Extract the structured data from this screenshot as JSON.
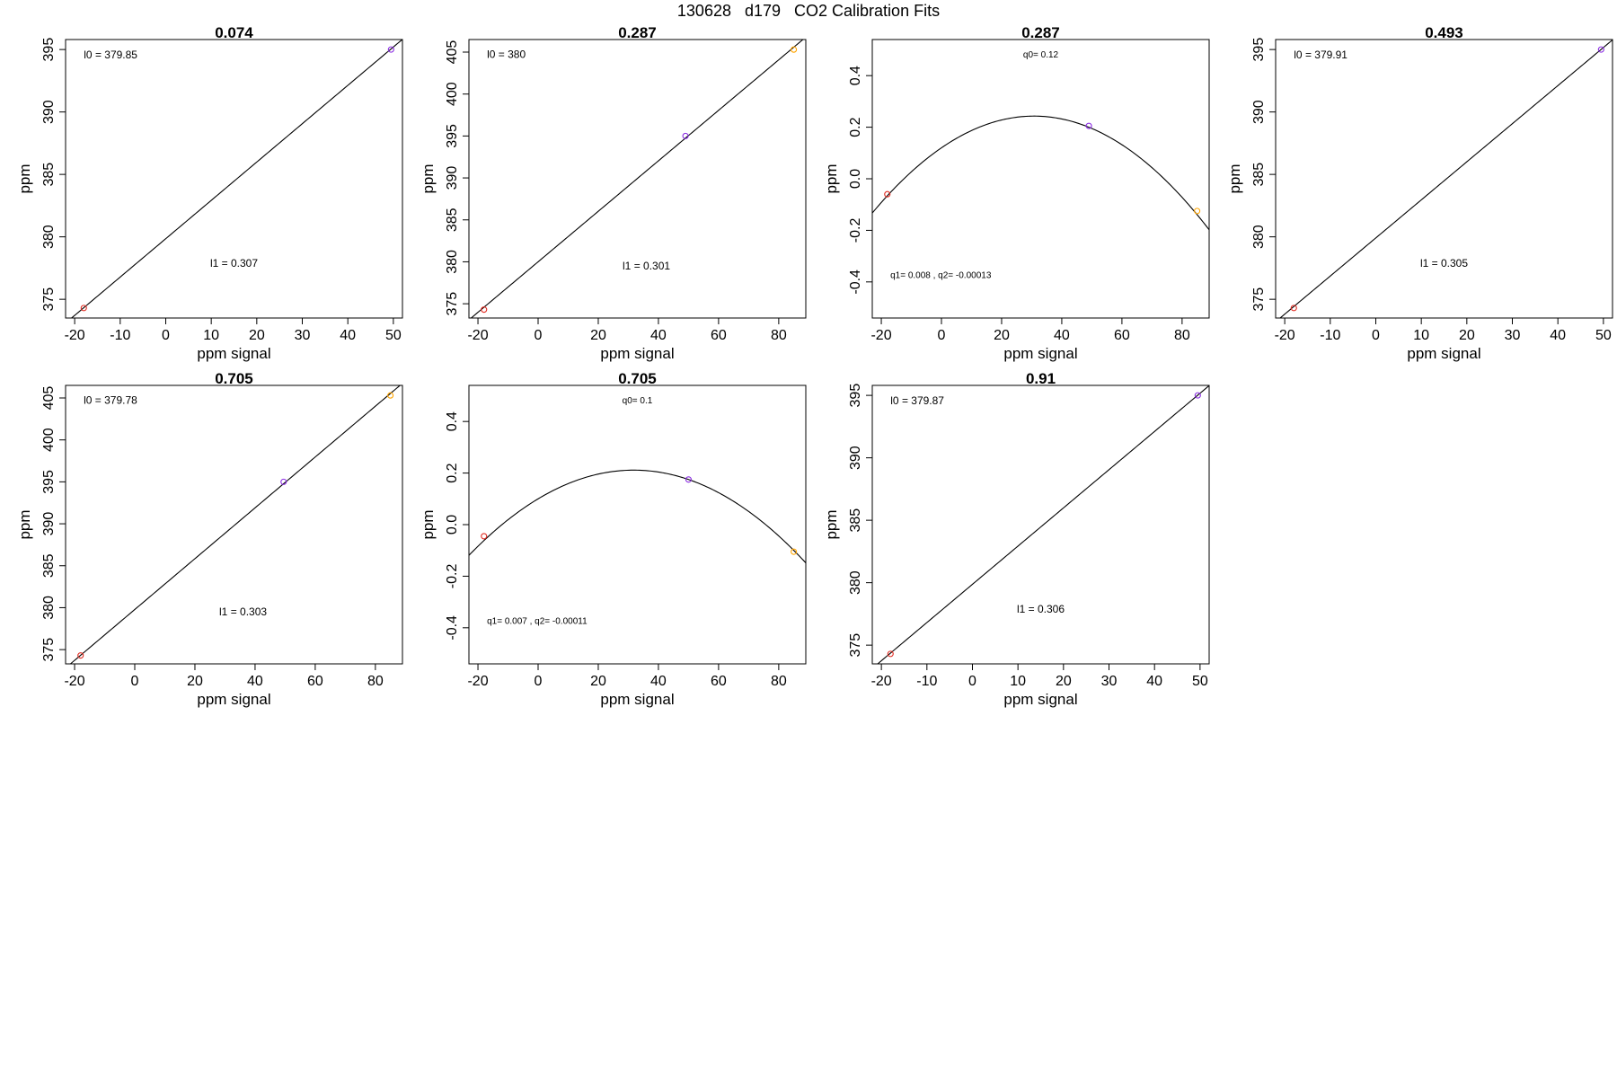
{
  "page": {
    "title": "130628   d179   CO2 Calibration Fits"
  },
  "colors": {
    "axis": "#000000",
    "fit_line": "#000000",
    "point_low": "#e0281e",
    "point_mid": "#8a2be2",
    "point_high": "#ffa500"
  },
  "chart_data": [
    {
      "type": "scatter",
      "fit": "linear",
      "title": "0.074",
      "xlabel": "ppm signal",
      "ylabel": "ppm",
      "xlim": [
        -22,
        52
      ],
      "ylim": [
        373.5,
        395.8
      ],
      "xticks": [
        -20,
        -10,
        0,
        10,
        20,
        30,
        40,
        50
      ],
      "yticks": [
        375,
        380,
        385,
        390,
        395
      ],
      "fit_params": {
        "intercept": 379.85,
        "slope": 0.307
      },
      "annotations": [
        {
          "id": "l0",
          "text": "l0 =  379.85",
          "x": -18,
          "y": 394.3,
          "size": "medium",
          "anchor": "start"
        },
        {
          "id": "l1",
          "text": "l1 =  0.307",
          "x": 15,
          "y": 377.6,
          "size": "medium",
          "anchor": "middle"
        }
      ],
      "points": [
        {
          "x": -18,
          "y": 374.3,
          "color": "#e0281e"
        },
        {
          "x": 49.5,
          "y": 395.0,
          "color": "#8a2be2"
        }
      ]
    },
    {
      "type": "scatter",
      "fit": "linear",
      "title": "0.287",
      "xlabel": "ppm signal",
      "ylabel": "ppm",
      "xlim": [
        -23,
        89
      ],
      "ylim": [
        373.3,
        406.5
      ],
      "xticks": [
        -20,
        0,
        20,
        40,
        60,
        80
      ],
      "yticks": [
        375,
        380,
        385,
        390,
        395,
        400,
        405
      ],
      "fit_params": {
        "intercept": 380,
        "slope": 0.301
      },
      "annotations": [
        {
          "id": "l0",
          "text": "l0 =  380",
          "x": -17,
          "y": 404.3,
          "size": "medium",
          "anchor": "start"
        },
        {
          "id": "l1",
          "text": "l1 =  0.301",
          "x": 36,
          "y": 379.1,
          "size": "medium",
          "anchor": "middle"
        }
      ],
      "points": [
        {
          "x": -18,
          "y": 374.3,
          "color": "#e0281e"
        },
        {
          "x": 49,
          "y": 395.0,
          "color": "#8a2be2"
        },
        {
          "x": 85,
          "y": 405.3,
          "color": "#ffa500"
        }
      ]
    },
    {
      "type": "scatter",
      "fit": "quadratic",
      "title": "0.287",
      "xlabel": "ppm signal",
      "ylabel": "ppm",
      "xlim": [
        -23,
        89
      ],
      "ylim": [
        -0.54,
        0.54
      ],
      "xticks": [
        -20,
        0,
        20,
        40,
        60,
        80
      ],
      "yticks": [
        -0.4,
        -0.2,
        0.0,
        0.2,
        0.4
      ],
      "fit_params": {
        "q0": 0.12,
        "q1": 0.008,
        "q2": -0.00013
      },
      "annotations": [
        {
          "id": "q0",
          "text": "q0= 0.12",
          "x": 33,
          "y": 0.47,
          "size": "small",
          "anchor": "middle"
        },
        {
          "id": "q12",
          "text": "q1= 0.008 , q2= -0.00013",
          "x": -17,
          "y": -0.385,
          "size": "small",
          "anchor": "start"
        }
      ],
      "points": [
        {
          "x": -18,
          "y": -0.06,
          "color": "#e0281e"
        },
        {
          "x": 49,
          "y": 0.205,
          "color": "#8a2be2"
        },
        {
          "x": 85,
          "y": -0.125,
          "color": "#ffa500"
        }
      ]
    },
    {
      "type": "scatter",
      "fit": "linear",
      "title": "0.493",
      "xlabel": "ppm signal",
      "ylabel": "ppm",
      "xlim": [
        -22,
        52
      ],
      "ylim": [
        373.5,
        395.8
      ],
      "xticks": [
        -20,
        -10,
        0,
        10,
        20,
        30,
        40,
        50
      ],
      "yticks": [
        375,
        380,
        385,
        390,
        395
      ],
      "fit_params": {
        "intercept": 379.91,
        "slope": 0.305
      },
      "annotations": [
        {
          "id": "l0",
          "text": "l0 =  379.91",
          "x": -18,
          "y": 394.3,
          "size": "medium",
          "anchor": "start"
        },
        {
          "id": "l1",
          "text": "l1 =  0.305",
          "x": 15,
          "y": 377.6,
          "size": "medium",
          "anchor": "middle"
        }
      ],
      "points": [
        {
          "x": -18,
          "y": 374.3,
          "color": "#e0281e"
        },
        {
          "x": 49.5,
          "y": 395.0,
          "color": "#8a2be2"
        }
      ]
    },
    {
      "type": "scatter",
      "fit": "linear",
      "title": "0.705",
      "xlabel": "ppm signal",
      "ylabel": "ppm",
      "xlim": [
        -23,
        89
      ],
      "ylim": [
        373.3,
        406.5
      ],
      "xticks": [
        -20,
        0,
        20,
        40,
        60,
        80
      ],
      "yticks": [
        375,
        380,
        385,
        390,
        395,
        400,
        405
      ],
      "fit_params": {
        "intercept": 379.78,
        "slope": 0.303
      },
      "annotations": [
        {
          "id": "l0",
          "text": "l0 =  379.78",
          "x": -17,
          "y": 404.3,
          "size": "medium",
          "anchor": "start"
        },
        {
          "id": "l1",
          "text": "l1 =  0.303",
          "x": 36,
          "y": 379.1,
          "size": "medium",
          "anchor": "middle"
        }
      ],
      "points": [
        {
          "x": -18,
          "y": 374.3,
          "color": "#e0281e"
        },
        {
          "x": 49.5,
          "y": 395.0,
          "color": "#8a2be2"
        },
        {
          "x": 85,
          "y": 405.3,
          "color": "#ffa500"
        }
      ]
    },
    {
      "type": "scatter",
      "fit": "quadratic",
      "title": "0.705",
      "xlabel": "ppm signal",
      "ylabel": "ppm",
      "xlim": [
        -23,
        89
      ],
      "ylim": [
        -0.54,
        0.54
      ],
      "xticks": [
        -20,
        0,
        20,
        40,
        60,
        80
      ],
      "yticks": [
        -0.4,
        -0.2,
        0.0,
        0.2,
        0.4
      ],
      "fit_params": {
        "q0": 0.1,
        "q1": 0.007,
        "q2": -0.00011
      },
      "annotations": [
        {
          "id": "q0",
          "text": "q0= 0.1",
          "x": 33,
          "y": 0.47,
          "size": "small",
          "anchor": "middle"
        },
        {
          "id": "q12",
          "text": "q1= 0.007 , q2= -0.00011",
          "x": -17,
          "y": -0.385,
          "size": "small",
          "anchor": "start"
        }
      ],
      "points": [
        {
          "x": -18,
          "y": -0.045,
          "color": "#e0281e"
        },
        {
          "x": 50,
          "y": 0.175,
          "color": "#8a2be2"
        },
        {
          "x": 85,
          "y": -0.105,
          "color": "#ffa500"
        }
      ]
    },
    {
      "type": "scatter",
      "fit": "linear",
      "title": "0.91",
      "xlabel": "ppm signal",
      "ylabel": "ppm",
      "xlim": [
        -22,
        52
      ],
      "ylim": [
        373.5,
        395.8
      ],
      "xticks": [
        -20,
        -10,
        0,
        10,
        20,
        30,
        40,
        50
      ],
      "yticks": [
        375,
        380,
        385,
        390,
        395
      ],
      "fit_params": {
        "intercept": 379.87,
        "slope": 0.306
      },
      "annotations": [
        {
          "id": "l0",
          "text": "l0 =  379.87",
          "x": -18,
          "y": 394.3,
          "size": "medium",
          "anchor": "start"
        },
        {
          "id": "l1",
          "text": "l1 =  0.306",
          "x": 15,
          "y": 377.6,
          "size": "medium",
          "anchor": "middle"
        }
      ],
      "points": [
        {
          "x": -18,
          "y": 374.3,
          "color": "#e0281e"
        },
        {
          "x": 49.5,
          "y": 395.0,
          "color": "#8a2be2"
        }
      ]
    }
  ]
}
